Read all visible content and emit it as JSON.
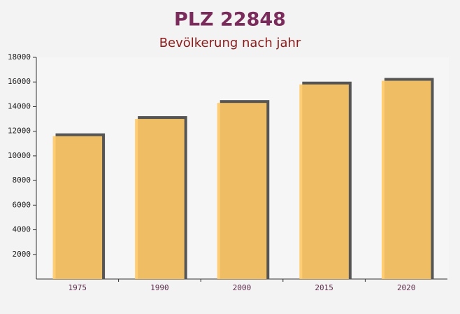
{
  "chart_data": {
    "type": "bar",
    "title": "PLZ 22848",
    "subtitle": "Bevölkerung nach jahr",
    "categories": [
      "1975",
      "1990",
      "2000",
      "2015",
      "2020"
    ],
    "values": [
      11600,
      13000,
      14300,
      15800,
      16100
    ],
    "color": "#ffc966",
    "ylim": [
      0,
      18000
    ],
    "yticks": [
      2000,
      4000,
      6000,
      8000,
      10000,
      12000,
      14000,
      16000,
      18000
    ],
    "grid": false
  }
}
